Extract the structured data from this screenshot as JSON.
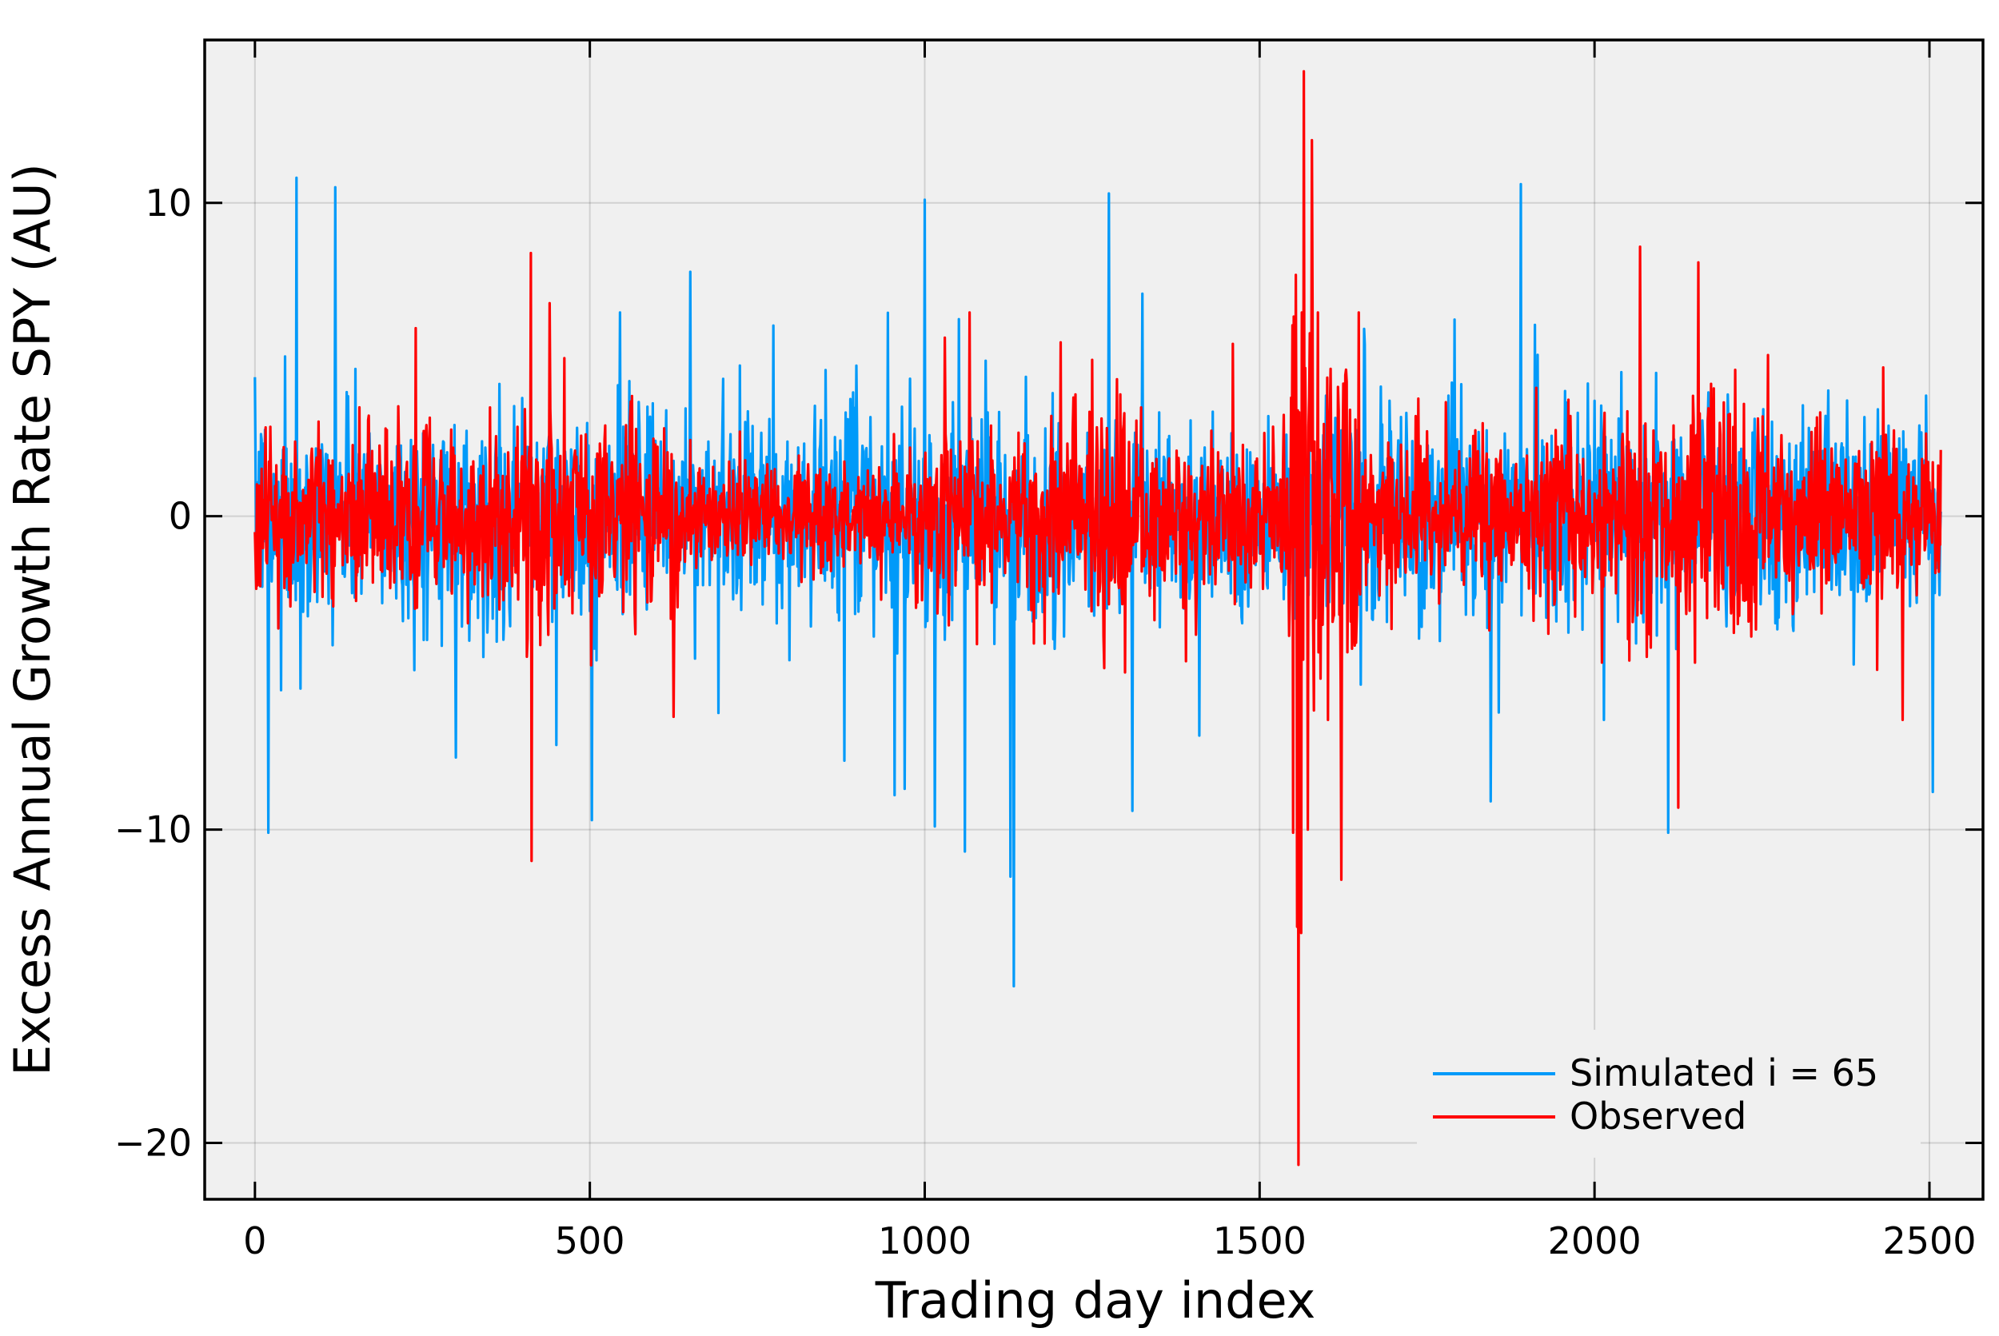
{
  "chart_data": {
    "type": "line",
    "xlabel": "Trading day index",
    "ylabel": "Excess Annual Growth Rate SPY (AU)",
    "xlim": [
      -75,
      2580
    ],
    "ylim": [
      -21.8,
      15.2
    ],
    "xticks": [
      0,
      500,
      1000,
      1500,
      2000,
      2500
    ],
    "yticks": [
      -20,
      -10,
      0,
      10
    ],
    "xtick_labels": [
      "0",
      "500",
      "1000",
      "1500",
      "2000",
      "2500"
    ],
    "ytick_labels": [
      "−20",
      "−10",
      "0",
      "10"
    ],
    "grid": true,
    "legend_position": "bottom-right",
    "n_points": 2518,
    "series": [
      {
        "name": "Simulated i = 65",
        "color": "#009af9",
        "typical_spread": 1.6,
        "spikes": [
          {
            "x": 20,
            "y": -10.1
          },
          {
            "x": 45,
            "y": 5.1
          },
          {
            "x": 62,
            "y": 10.8
          },
          {
            "x": 68,
            "y": -5.5
          },
          {
            "x": 120,
            "y": 10.5
          },
          {
            "x": 150,
            "y": 4.7
          },
          {
            "x": 300,
            "y": -7.7
          },
          {
            "x": 450,
            "y": -7.3
          },
          {
            "x": 503,
            "y": -9.7
          },
          {
            "x": 545,
            "y": 6.5
          },
          {
            "x": 650,
            "y": 7.8
          },
          {
            "x": 880,
            "y": -7.8
          },
          {
            "x": 955,
            "y": -8.9
          },
          {
            "x": 970,
            "y": -8.7
          },
          {
            "x": 1000,
            "y": 10.1
          },
          {
            "x": 1015,
            "y": -9.9
          },
          {
            "x": 1060,
            "y": -10.7
          },
          {
            "x": 1128,
            "y": -11.5
          },
          {
            "x": 1133,
            "y": -15.0
          },
          {
            "x": 1275,
            "y": 10.3
          },
          {
            "x": 1310,
            "y": -9.4
          },
          {
            "x": 1325,
            "y": 7.1
          },
          {
            "x": 1410,
            "y": -7.0
          },
          {
            "x": 1845,
            "y": -9.1
          },
          {
            "x": 1890,
            "y": 10.6
          },
          {
            "x": 2110,
            "y": -10.1
          },
          {
            "x": 2505,
            "y": -8.8
          }
        ]
      },
      {
        "name": "Observed",
        "color": "#ff0000",
        "typical_spread": 1.3,
        "spikes": [
          {
            "x": 240,
            "y": 6.0
          },
          {
            "x": 412,
            "y": 8.4
          },
          {
            "x": 413,
            "y": -11.0
          },
          {
            "x": 440,
            "y": 6.8
          },
          {
            "x": 625,
            "y": -6.4
          },
          {
            "x": 1030,
            "y": 5.7
          },
          {
            "x": 1460,
            "y": 5.5
          },
          {
            "x": 1550,
            "y": -10.1
          },
          {
            "x": 1554,
            "y": 7.7
          },
          {
            "x": 1556,
            "y": -13.1
          },
          {
            "x": 1558,
            "y": -20.7
          },
          {
            "x": 1562,
            "y": -13.3
          },
          {
            "x": 1566,
            "y": 14.2
          },
          {
            "x": 1572,
            "y": -10.0
          },
          {
            "x": 1578,
            "y": 12.0
          },
          {
            "x": 1622,
            "y": -11.6
          },
          {
            "x": 2068,
            "y": 8.6
          },
          {
            "x": 2125,
            "y": -9.3
          },
          {
            "x": 2155,
            "y": 8.1
          }
        ]
      }
    ]
  },
  "legend": {
    "entries": [
      "Simulated i = 65",
      "Observed"
    ]
  }
}
